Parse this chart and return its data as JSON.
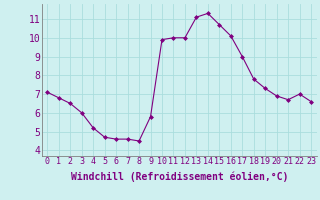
{
  "x": [
    0,
    1,
    2,
    3,
    4,
    5,
    6,
    7,
    8,
    9,
    10,
    11,
    12,
    13,
    14,
    15,
    16,
    17,
    18,
    19,
    20,
    21,
    22,
    23
  ],
  "y": [
    7.1,
    6.8,
    6.5,
    6.0,
    5.2,
    4.7,
    4.6,
    4.6,
    4.5,
    5.8,
    9.9,
    10.0,
    10.0,
    11.1,
    11.3,
    10.7,
    10.1,
    9.0,
    7.8,
    7.3,
    6.9,
    6.7,
    7.0,
    6.6
  ],
  "xlabel": "Windchill (Refroidissement éolien,°C)",
  "xlim_min": -0.5,
  "xlim_max": 23.5,
  "ylim_min": 3.7,
  "ylim_max": 11.8,
  "yticks": [
    4,
    5,
    6,
    7,
    8,
    9,
    10,
    11
  ],
  "xticks": [
    0,
    1,
    2,
    3,
    4,
    5,
    6,
    7,
    8,
    9,
    10,
    11,
    12,
    13,
    14,
    15,
    16,
    17,
    18,
    19,
    20,
    21,
    22,
    23
  ],
  "line_color": "#800080",
  "marker_color": "#800080",
  "bg_color": "#cff0f0",
  "grid_color": "#aadddd",
  "tick_label_color": "#800080",
  "axis_label_color": "#800080",
  "tick_fontsize": 6,
  "label_fontsize": 7
}
